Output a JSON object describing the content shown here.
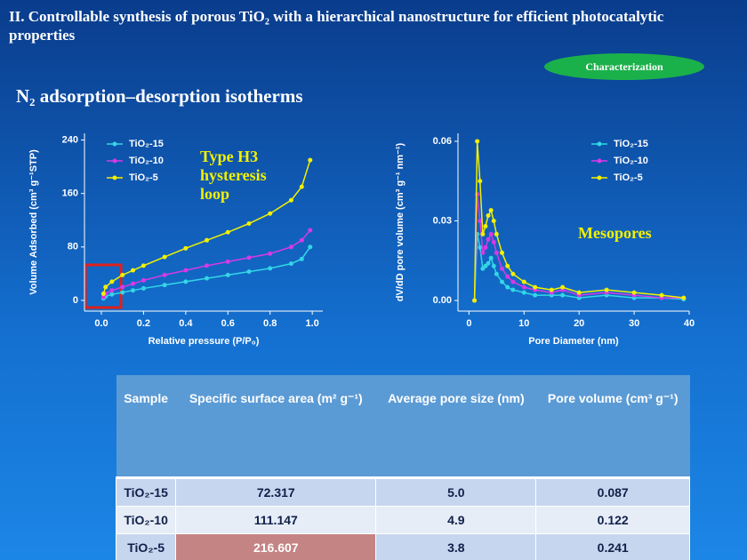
{
  "slide": {
    "title": "II. Controllable synthesis of porous TiO₂ with a hierarchical nanostructure for efficient photocatalytic properties",
    "badge": "Characterization",
    "heading": "N₂ adsorption–desorption isotherms"
  },
  "chart_data": [
    {
      "type": "line",
      "x": [
        0.01,
        0.02,
        0.05,
        0.1,
        0.15,
        0.2,
        0.3,
        0.4,
        0.5,
        0.6,
        0.7,
        0.8,
        0.9,
        0.95,
        0.99
      ],
      "series": [
        {
          "name": "TiO₂-15",
          "color": "#33d6e6",
          "values": [
            3,
            6,
            9,
            12,
            15,
            18,
            23,
            28,
            33,
            38,
            43,
            48,
            55,
            62,
            80
          ]
        },
        {
          "name": "TiO₂-10",
          "color": "#d63ae6",
          "values": [
            5,
            10,
            15,
            20,
            25,
            30,
            38,
            45,
            52,
            58,
            64,
            70,
            80,
            90,
            105
          ]
        },
        {
          "name": "TiO₂-5",
          "color": "#f2f000",
          "values": [
            10,
            20,
            28,
            38,
            45,
            52,
            65,
            78,
            90,
            102,
            115,
            130,
            150,
            170,
            210
          ]
        }
      ],
      "xlim": [
        -0.08,
        1.05
      ],
      "ylim": [
        -16,
        250
      ],
      "xticks": [
        {
          "value": 0,
          "label": "0.0"
        },
        0.2,
        0.4,
        0.6,
        0.8,
        {
          "value": 1,
          "label": "1.0"
        }
      ],
      "yticks": [
        0,
        80,
        160,
        240
      ],
      "xlabel": "Relative pressure (P/P₀)",
      "ylabel": "Volume Adsorbed (cm³ g⁻¹STP)",
      "legend": "upper left",
      "annotation": "Type H3 hysteresis loop"
    },
    {
      "type": "line",
      "x": [
        1,
        1.5,
        2,
        2.5,
        3,
        3.5,
        4,
        4.5,
        5,
        6,
        7,
        8,
        10,
        12,
        15,
        17,
        20,
        25,
        30,
        35,
        39
      ],
      "series": [
        {
          "name": "TiO₂-15",
          "color": "#33d6e6",
          "values": [
            0,
            0.025,
            0.02,
            0.012,
            0.013,
            0.014,
            0.016,
            0.013,
            0.01,
            0.007,
            0.005,
            0.004,
            0.003,
            0.002,
            0.002,
            0.002,
            0.001,
            0.002,
            0.001,
            0.001,
            0.0005
          ]
        },
        {
          "name": "TiO₂-10",
          "color": "#d63ae6",
          "values": [
            0,
            0.04,
            0.03,
            0.018,
            0.02,
            0.023,
            0.025,
            0.022,
            0.018,
            0.012,
            0.009,
            0.007,
            0.005,
            0.004,
            0.003,
            0.004,
            0.002,
            0.003,
            0.002,
            0.001,
            0.001
          ]
        },
        {
          "name": "TiO₂-5",
          "color": "#f2f000",
          "values": [
            0,
            0.06,
            0.045,
            0.025,
            0.028,
            0.032,
            0.034,
            0.03,
            0.025,
            0.018,
            0.013,
            0.01,
            0.007,
            0.005,
            0.004,
            0.005,
            0.003,
            0.004,
            0.003,
            0.002,
            0.001
          ]
        }
      ],
      "xlim": [
        -2,
        40
      ],
      "ylim": [
        -0.004,
        0.063
      ],
      "xticks": [
        0,
        10,
        20,
        30,
        40
      ],
      "yticks": [
        {
          "value": 0,
          "label": "0.00"
        },
        {
          "value": 0.03,
          "label": "0.03"
        },
        {
          "value": 0.06,
          "label": "0.06"
        }
      ],
      "xlabel": "Pore Diameter (nm)",
      "ylabel": "dV/dD pore volume (cm³ g⁻¹ nm⁻¹)",
      "legend": "upper right",
      "annotation": "Mesopores"
    }
  ],
  "table": {
    "header": [
      "Sample",
      "Specific surface area (m² g⁻¹)",
      "Average pore size (nm)",
      "Pore volume (cm³ g⁻¹)"
    ],
    "rows": [
      [
        "TiO₂-15",
        "72.317",
        "5.0",
        "0.087"
      ],
      [
        "TiO₂-10",
        "111.147",
        "4.9",
        "0.122"
      ],
      [
        "TiO₂-5",
        "216.607",
        "3.8",
        "0.241"
      ]
    ]
  }
}
